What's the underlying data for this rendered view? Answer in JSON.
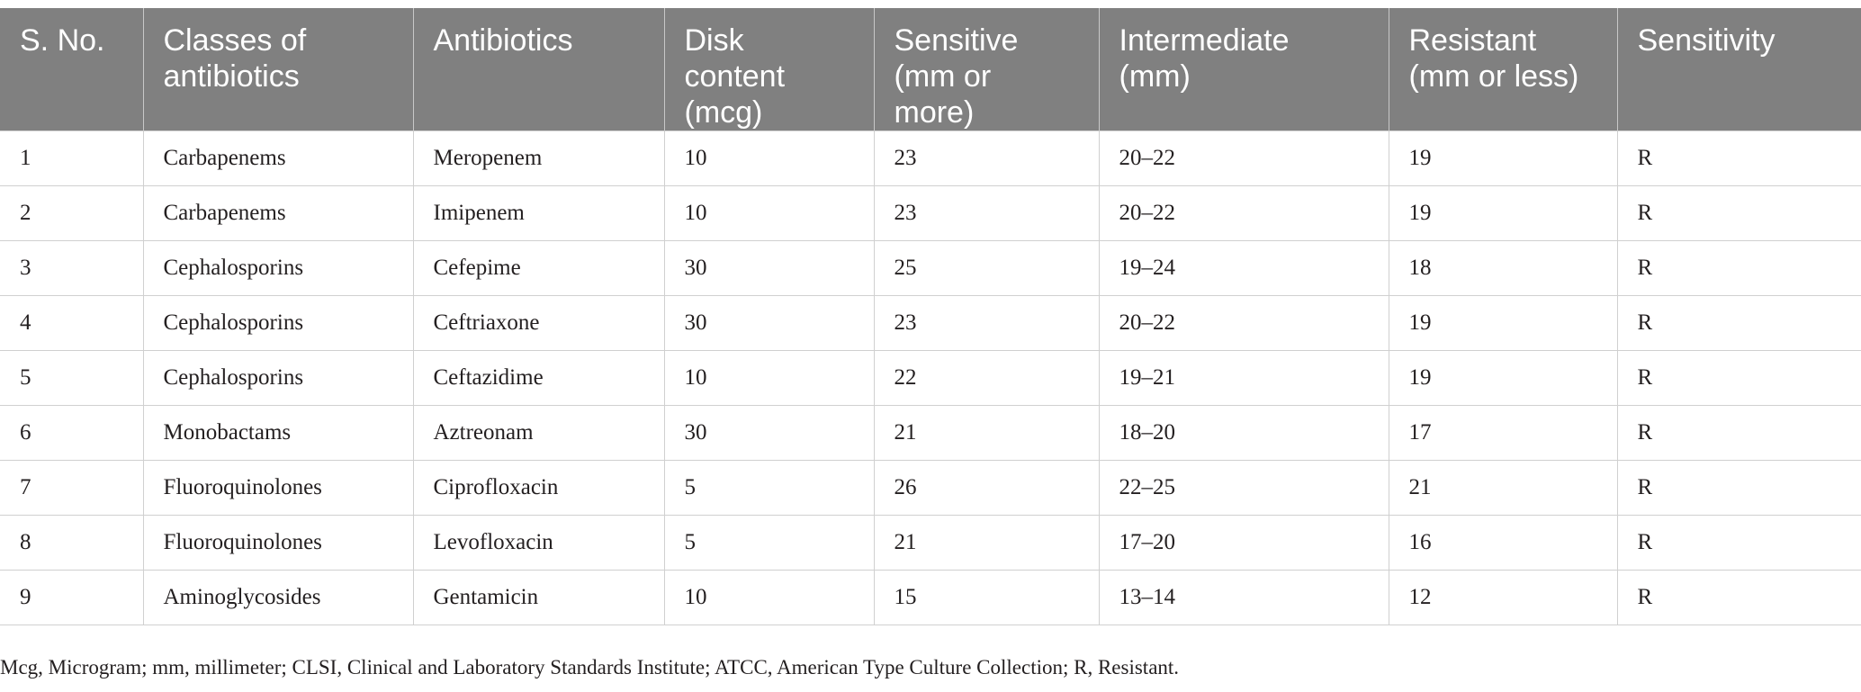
{
  "table": {
    "headers": [
      "S. No.",
      "Classes of\nantibiotics",
      "Antibiotics",
      "Disk\ncontent\n(mcg)",
      "Sensitive\n(mm or\nmore)",
      "Intermediate\n(mm)",
      "Resistant\n(mm or less)",
      "Sensitivity"
    ],
    "rows": [
      [
        "1",
        "Carbapenems",
        "Meropenem",
        "10",
        "23",
        "20–22",
        "19",
        "R"
      ],
      [
        "2",
        "Carbapenems",
        "Imipenem",
        "10",
        "23",
        "20–22",
        "19",
        "R"
      ],
      [
        "3",
        "Cephalosporins",
        "Cefepime",
        "30",
        "25",
        "19–24",
        "18",
        "R"
      ],
      [
        "4",
        "Cephalosporins",
        "Ceftriaxone",
        "30",
        "23",
        "20–22",
        "19",
        "R"
      ],
      [
        "5",
        "Cephalosporins",
        "Ceftazidime",
        "10",
        "22",
        "19–21",
        "19",
        "R"
      ],
      [
        "6",
        "Monobactams",
        "Aztreonam",
        "30",
        "21",
        "18–20",
        "17",
        "R"
      ],
      [
        "7",
        "Fluoroquinolones",
        "Ciprofloxacin",
        "5",
        "26",
        "22–25",
        "21",
        "R"
      ],
      [
        "8",
        "Fluoroquinolones",
        "Levofloxacin",
        "5",
        "21",
        "17–20",
        "16",
        "R"
      ],
      [
        "9",
        "Aminoglycosides",
        "Gentamicin",
        "10",
        "15",
        "13–14",
        "12",
        "R"
      ]
    ]
  },
  "footnote": "Mcg, Microgram; mm, millimeter; CLSI, Clinical and Laboratory Standards Institute; ATCC, American Type Culture Collection; R, Resistant."
}
